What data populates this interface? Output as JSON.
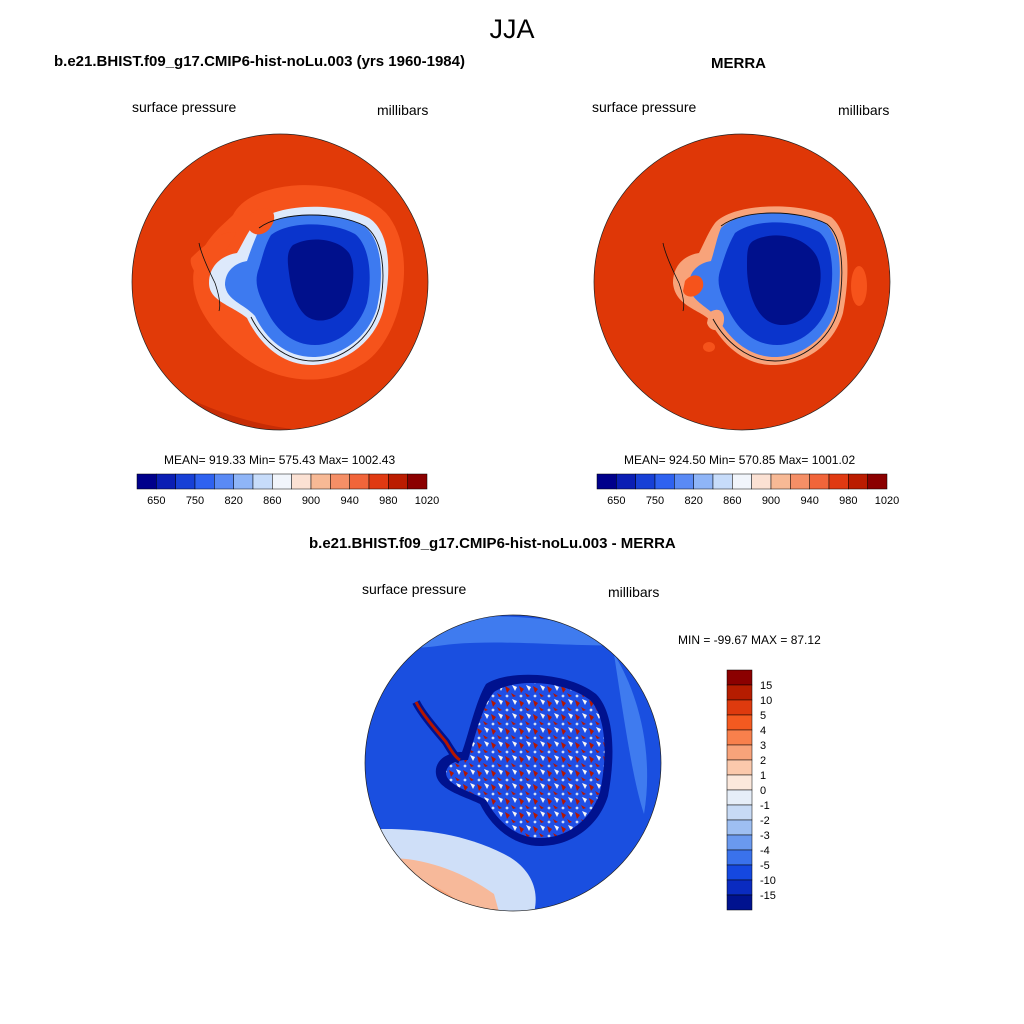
{
  "figure": {
    "season": "JJA"
  },
  "panels": {
    "model": {
      "title": "b.e21.BHIST.f09_g17.CMIP6-hist-noLu.003 (yrs 1960-1984)",
      "variable": "surface pressure",
      "units": "millibars",
      "stats": "MEAN= 919.33  Min= 575.43  Max= 1002.43"
    },
    "obs": {
      "title": "MERRA",
      "variable": "surface pressure",
      "units": "millibars",
      "stats": "MEAN= 924.50  Min= 570.85  Max= 1001.02"
    },
    "diff": {
      "title": "b.e21.BHIST.f09_g17.CMIP6-hist-noLu.003 - MERRA",
      "variable": "surface pressure",
      "units": "millibars",
      "stats": "MIN = -99.67 MAX =  87.12"
    }
  },
  "colorbars": {
    "main": {
      "colors": [
        "#00008b",
        "#0a1eb4",
        "#1740d6",
        "#2f62f0",
        "#5a8af5",
        "#8fb5f7",
        "#c7dcfa",
        "#f1f5fb",
        "#fbe1d3",
        "#f7b995",
        "#f58f66",
        "#f1653a",
        "#e03a12",
        "#bb1c00",
        "#8b0000"
      ],
      "tick_labels": [
        "650",
        "750",
        "820",
        "860",
        "900",
        "940",
        "980",
        "1020"
      ]
    },
    "diff": {
      "colors": [
        "#8b0000",
        "#b51c00",
        "#de3a0e",
        "#f45a20",
        "#f8804c",
        "#f8a37a",
        "#fbc9ac",
        "#fbe8dc",
        "#e6eef8",
        "#c7daf5",
        "#9ebff2",
        "#6a99ef",
        "#3a72ec",
        "#1548e0",
        "#0a2bc0",
        "#00128f"
      ],
      "tick_labels": [
        "15",
        "10",
        "5",
        "4",
        "3",
        "2",
        "1",
        "0",
        "-1",
        "-2",
        "-3",
        "-4",
        "-5",
        "-10",
        "-15"
      ]
    }
  },
  "palette": {
    "ocean_model": "#e13a08",
    "ocean_model_ring": "#f6531b",
    "ocean_obs": "#df3707",
    "continent_high": "#00108c",
    "continent_mid": "#0a34cc",
    "continent_edge": "#3d7af0",
    "coast_light": "#dde9fb",
    "diff_ocean": "#1a4fe0",
    "diff_ocean_light": "#3f7bef",
    "diff_positive": "#b41600",
    "diff_negative": "#1f4fe6",
    "diff_pale": "#cfdff8",
    "diff_peach": "#f7b99a"
  }
}
